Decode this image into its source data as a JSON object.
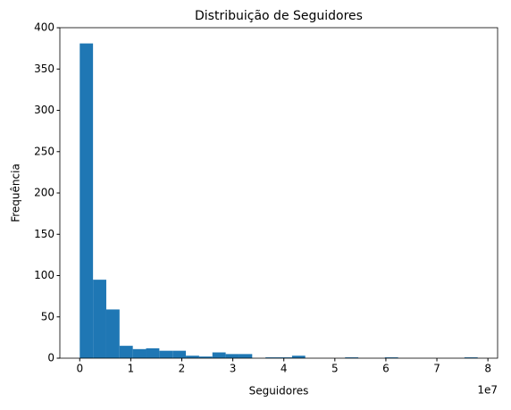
{
  "chart_data": {
    "type": "histogram",
    "title": "Distribuição de Seguidores",
    "xlabel": "Seguidores",
    "ylabel": "Frequência",
    "x_offset_label": "1e7",
    "color": "#1f77b4",
    "bins": [
      0,
      2600000,
      5200000,
      7800000,
      10400000,
      13000000,
      15600000,
      18200000,
      20800000,
      23400000,
      26000000,
      28600000,
      31200000,
      33800000,
      36400000,
      39000000,
      41600000,
      44200000,
      46800000,
      49400000,
      52000000,
      54600000,
      57200000,
      59800000,
      62400000,
      65000000,
      67600000,
      70200000,
      72800000,
      75400000,
      78000000
    ],
    "values": [
      381,
      95,
      59,
      15,
      11,
      12,
      9,
      9,
      3,
      2,
      7,
      5,
      5,
      0,
      1,
      1,
      3,
      0,
      0,
      0,
      1,
      0,
      0,
      1,
      0,
      0,
      0,
      0,
      0,
      1
    ],
    "xlim": [
      -3900000,
      81900000
    ],
    "xticks": [
      {
        "value": 0,
        "label": "0"
      },
      {
        "value": 10000000,
        "label": "1"
      },
      {
        "value": 20000000,
        "label": "2"
      },
      {
        "value": 30000000,
        "label": "3"
      },
      {
        "value": 40000000,
        "label": "4"
      },
      {
        "value": 50000000,
        "label": "5"
      },
      {
        "value": 60000000,
        "label": "6"
      },
      {
        "value": 70000000,
        "label": "7"
      },
      {
        "value": 80000000,
        "label": "8"
      }
    ],
    "ylim": [
      0,
      400.05
    ],
    "yticks": [
      0,
      50,
      100,
      150,
      200,
      250,
      300,
      350,
      400
    ]
  }
}
